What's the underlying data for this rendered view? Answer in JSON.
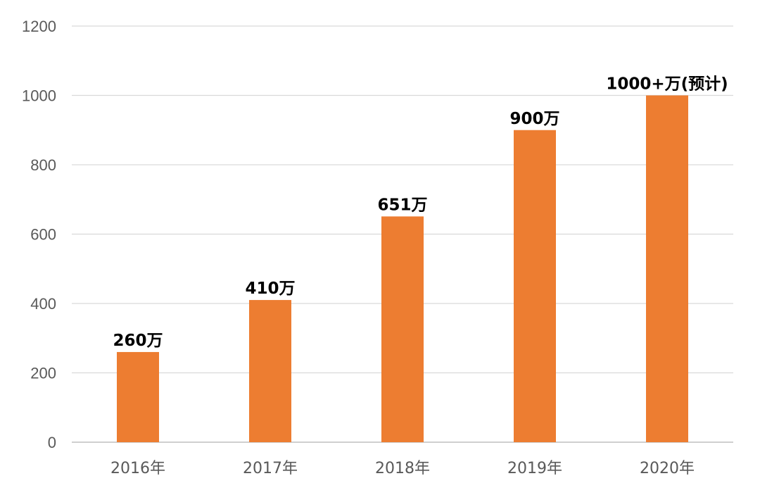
{
  "chart_data": {
    "type": "bar",
    "categories": [
      "2016年",
      "2017年",
      "2018年",
      "2019年",
      "2020年"
    ],
    "values": [
      260,
      410,
      651,
      900,
      1000
    ],
    "data_labels": [
      "260万",
      "410万",
      "651万",
      "900万",
      "1000+万(预计)"
    ],
    "yticks": [
      0,
      200,
      400,
      600,
      800,
      1000,
      1200
    ],
    "ylim": [
      0,
      1200
    ],
    "title": "",
    "xlabel": "",
    "ylabel": "",
    "grid": true,
    "legend": "none",
    "bar_color": "#ED7D31"
  }
}
